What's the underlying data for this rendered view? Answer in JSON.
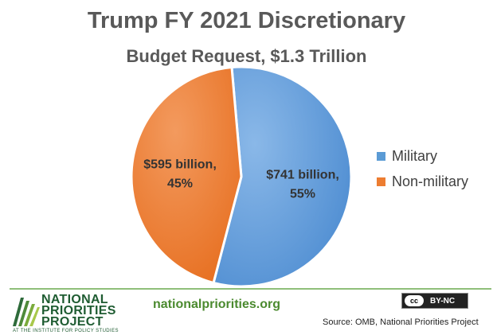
{
  "chart_data": {
    "type": "pie",
    "title": "Trump FY 2021 Discretionary",
    "subtitle": "Budget Request, $1.3 Trillion",
    "categories": [
      "Military",
      "Non-military"
    ],
    "values": [
      741,
      595
    ],
    "percents": [
      55,
      45
    ],
    "labels": [
      {
        "line1": "$741 billion,",
        "line2": "55%"
      },
      {
        "line1": "$595 billion,",
        "line2": "45%"
      }
    ],
    "colors": [
      "#5b9bd5",
      "#ed7d31"
    ],
    "legend_position": "right"
  },
  "footer": {
    "logo_lines": [
      "NATIONAL",
      "PRIORITIES",
      "PROJECT"
    ],
    "logo_tagline": "AT THE INSTITUTE FOR POLICY STUDIES",
    "website": "nationalpriorities.org",
    "license_cc": "cc",
    "license_text": "BY-NC",
    "source": "Source: OMB, National Priorities Project"
  }
}
